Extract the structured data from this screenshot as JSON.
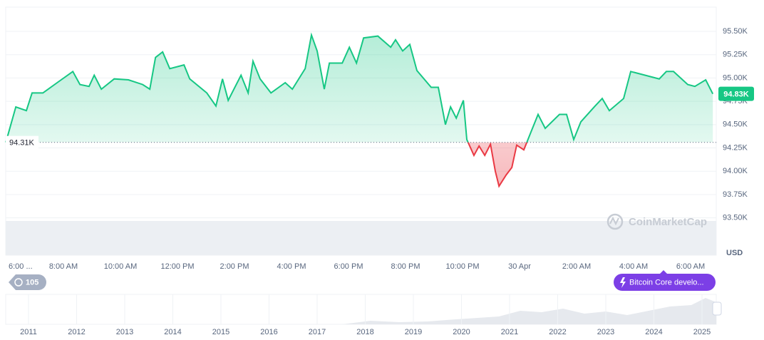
{
  "chart_data": {
    "type": "line",
    "x": [
      5.98,
      6.33,
      6.7,
      6.9,
      7.28,
      7.78,
      8.33,
      8.58,
      8.9,
      9.08,
      9.33,
      9.78,
      10.28,
      10.78,
      11.03,
      11.23,
      11.48,
      11.73,
      12.23,
      12.43,
      13.03,
      13.35,
      13.58,
      13.78,
      14.23,
      14.48,
      14.65,
      14.9,
      15.28,
      15.78,
      16.03,
      16.48,
      16.7,
      16.9,
      17.15,
      17.33,
      17.78,
      18.03,
      18.28,
      18.53,
      19.03,
      19.48,
      19.65,
      19.9,
      20.15,
      20.4,
      20.9,
      21.15,
      21.4,
      21.58,
      21.78,
      22.03,
      22.15,
      22.4,
      22.58,
      22.78,
      22.98,
      23.15,
      23.28,
      23.53,
      23.73,
      23.9,
      24.15,
      24.4,
      24.65,
      24.9,
      25.4,
      25.65,
      25.9,
      26.15,
      26.65,
      26.9,
      27.15,
      27.65,
      27.9,
      28.4,
      28.9,
      29.15,
      29.4,
      29.9,
      30.15,
      30.53,
      30.78
    ],
    "series": [
      {
        "color": "#16c784",
        "below_color": "#ea3943",
        "values": [
          94310,
          94690,
          94650,
          94840,
          94840,
          94950,
          95070,
          94930,
          94910,
          95030,
          94880,
          94990,
          94980,
          94930,
          94880,
          95220,
          95280,
          95100,
          95140,
          94990,
          94840,
          94700,
          94990,
          94760,
          95030,
          94840,
          95180,
          94990,
          94840,
          94950,
          94880,
          95100,
          95460,
          95290,
          94880,
          95160,
          95160,
          95330,
          95160,
          95430,
          95450,
          95330,
          95410,
          95290,
          95360,
          95080,
          94900,
          94900,
          94500,
          94690,
          94570,
          94760,
          94340,
          94170,
          94270,
          94170,
          94290,
          94000,
          93840,
          93960,
          94040,
          94280,
          94230,
          94420,
          94610,
          94460,
          94610,
          94610,
          94340,
          94530,
          94700,
          94780,
          94650,
          94780,
          95070,
          95030,
          94990,
          95070,
          95070,
          94930,
          94910,
          94980,
          94830
        ]
      }
    ],
    "xlim": [
      5.975,
      30.9
    ],
    "xticks": [
      {
        "value": 6,
        "label": "6:00 ..."
      },
      {
        "value": 8,
        "label": "8:00 AM"
      },
      {
        "value": 10,
        "label": "10:00 AM"
      },
      {
        "value": 12,
        "label": "12:00 PM"
      },
      {
        "value": 14,
        "label": "2:00 PM"
      },
      {
        "value": 16,
        "label": "4:00 PM"
      },
      {
        "value": 18,
        "label": "6:00 PM"
      },
      {
        "value": 20,
        "label": "8:00 PM"
      },
      {
        "value": 22,
        "label": "10:00 PM"
      },
      {
        "value": 24,
        "label": "30 Apr"
      },
      {
        "value": 26,
        "label": "2:00 AM"
      },
      {
        "value": 28,
        "label": "4:00 AM"
      },
      {
        "value": 30,
        "label": "6:00 AM"
      }
    ],
    "ylim": [
      93100,
      95760
    ],
    "yticks": [
      {
        "value": 93500,
        "label": "93.50K"
      },
      {
        "value": 93750,
        "label": "93.75K"
      },
      {
        "value": 94000,
        "label": "94.00K"
      },
      {
        "value": 94250,
        "label": "94.25K"
      },
      {
        "value": 94500,
        "label": "94.50K"
      },
      {
        "value": 94750,
        "label": "94.75K"
      },
      {
        "value": 95000,
        "label": "95.00K"
      },
      {
        "value": 95250,
        "label": "95.25K"
      },
      {
        "value": 95500,
        "label": "95.50K"
      }
    ],
    "grid": true,
    "reference": {
      "value": 94310,
      "label": "94.31K"
    },
    "current_price": {
      "value": 94830,
      "label": "94.83K"
    },
    "currency": "USD",
    "watermark": "CoinMarketCap"
  },
  "ui": {
    "history_count": "105",
    "news_badge": "Bitcoin Core develo...",
    "navigator_years": [
      "2011",
      "2012",
      "2013",
      "2014",
      "2015",
      "2016",
      "2017",
      "2018",
      "2019",
      "2020",
      "2021",
      "2022",
      "2023",
      "2024",
      "2025"
    ]
  }
}
